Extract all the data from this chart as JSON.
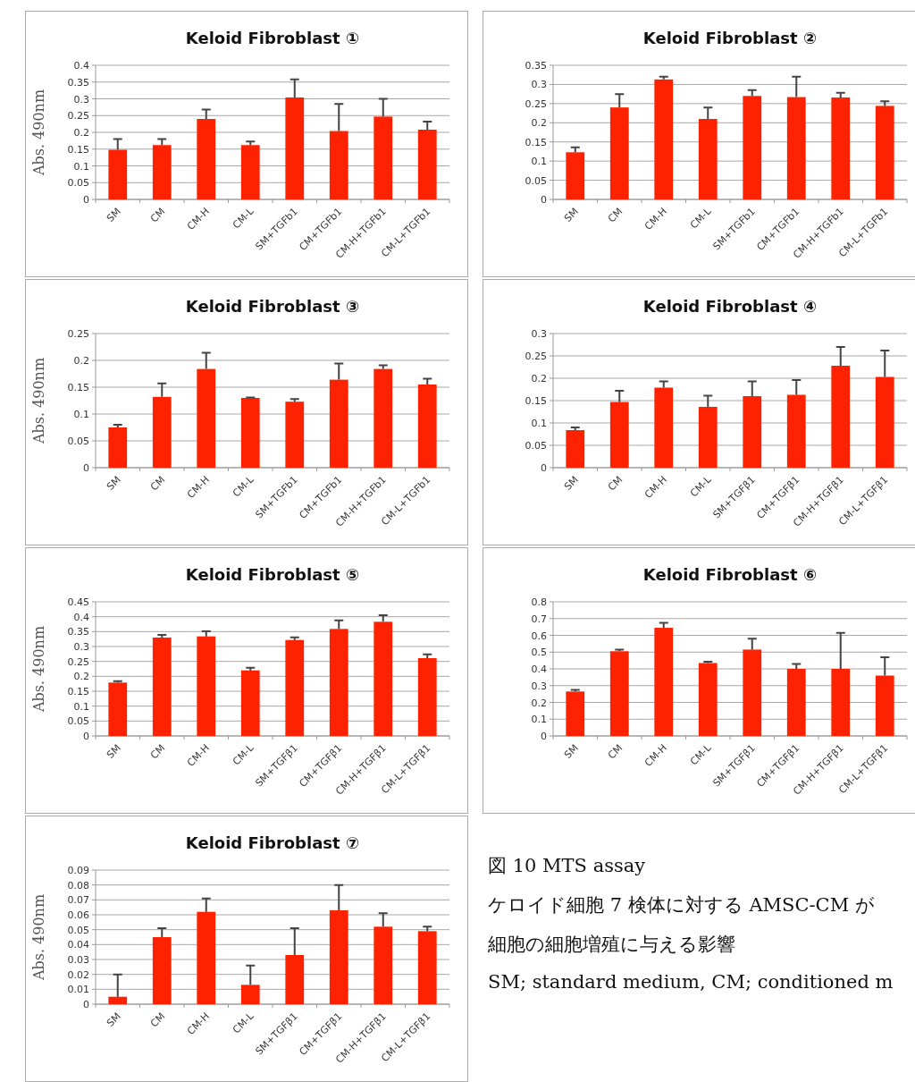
{
  "chart_data": [
    {
      "type": "bar",
      "title": "Keloid Fibroblast ①",
      "ylabel": "Abs. 490nm",
      "categories": [
        "SM",
        "CM",
        "CM-H",
        "CM-L",
        "SM+TGFb1",
        "CM+TGFb1",
        "CM-H+TGFb1",
        "CM-L+TGFb1"
      ],
      "values": [
        0.148,
        0.162,
        0.24,
        0.162,
        0.304,
        0.204,
        0.247,
        0.208
      ],
      "errors": [
        [
          0.148,
          0.18
        ],
        [
          0.162,
          0.18
        ],
        [
          0.24,
          0.268
        ],
        [
          0.162,
          0.173
        ],
        [
          0.304,
          0.358
        ],
        [
          0.204,
          0.285
        ],
        [
          0.247,
          0.3
        ],
        [
          0.208,
          0.232
        ]
      ],
      "color": "#ff2200",
      "ylim": [
        0,
        0.4
      ],
      "yticks": [
        0,
        0.05,
        0.1,
        0.15,
        0.2,
        0.25,
        0.3,
        0.35,
        0.4
      ],
      "grid": "y"
    },
    {
      "type": "bar",
      "title": "Keloid Fibroblast ②",
      "categories": [
        "SM",
        "CM",
        "CM-H",
        "CM-L",
        "SM+TGFb1",
        "CM+TGFb1",
        "CM-H+TGFb1",
        "CM-L+TGFb1"
      ],
      "values": [
        0.123,
        0.24,
        0.313,
        0.21,
        0.27,
        0.267,
        0.266,
        0.244
      ],
      "errors": [
        [
          0.123,
          0.136
        ],
        [
          0.24,
          0.275
        ],
        [
          0.313,
          0.32
        ],
        [
          0.21,
          0.24
        ],
        [
          0.27,
          0.285
        ],
        [
          0.267,
          0.32
        ],
        [
          0.266,
          0.278
        ],
        [
          0.244,
          0.256
        ]
      ],
      "color": "#ff2200",
      "ylim": [
        0,
        0.35
      ],
      "yticks": [
        0,
        0.05,
        0.1,
        0.15,
        0.2,
        0.25,
        0.3,
        0.35
      ],
      "grid": "y"
    },
    {
      "type": "bar",
      "title": "Keloid Fibroblast ③",
      "ylabel": "Abs. 490nm",
      "categories": [
        "SM",
        "CM",
        "CM-H",
        "CM-L",
        "SM+TGFb1",
        "CM+TGFb1",
        "CM-H+TGFb1",
        "CM-L+TGFb1"
      ],
      "values": [
        0.075,
        0.132,
        0.184,
        0.13,
        0.123,
        0.164,
        0.184,
        0.155
      ],
      "errors": [
        [
          0.075,
          0.08
        ],
        [
          0.132,
          0.157
        ],
        [
          0.184,
          0.214
        ],
        [
          0.13,
          0.131
        ],
        [
          0.123,
          0.128
        ],
        [
          0.164,
          0.194
        ],
        [
          0.184,
          0.191
        ],
        [
          0.155,
          0.166
        ]
      ],
      "color": "#ff2200",
      "ylim": [
        0,
        0.25
      ],
      "yticks": [
        0,
        0.05,
        0.1,
        0.15,
        0.2,
        0.25
      ],
      "grid": "y"
    },
    {
      "type": "bar",
      "title": "Keloid Fibroblast ④",
      "categories": [
        "SM",
        "CM",
        "CM-H",
        "CM-L",
        "SM+TGFβ1",
        "CM+TGFβ1",
        "CM-H+TGFβ1",
        "CM-L+TGFβ1"
      ],
      "values": [
        0.084,
        0.147,
        0.179,
        0.136,
        0.16,
        0.163,
        0.228,
        0.203
      ],
      "errors": [
        [
          0.084,
          0.09
        ],
        [
          0.147,
          0.172
        ],
        [
          0.179,
          0.193
        ],
        [
          0.136,
          0.161
        ],
        [
          0.16,
          0.193
        ],
        [
          0.163,
          0.196
        ],
        [
          0.228,
          0.27
        ],
        [
          0.203,
          0.262
        ]
      ],
      "color": "#ff2200",
      "ylim": [
        0,
        0.3
      ],
      "yticks": [
        0,
        0.05,
        0.1,
        0.15,
        0.2,
        0.25,
        0.3
      ],
      "grid": "y"
    },
    {
      "type": "bar",
      "title": "Keloid Fibroblast ⑤",
      "ylabel": "Abs. 490nm",
      "categories": [
        "SM",
        "CM",
        "CM-H",
        "CM-L",
        "SM+TGFβ1",
        "CM+TGFβ1",
        "CM-H+TGFβ1",
        "CM-L+TGFβ1"
      ],
      "values": [
        0.179,
        0.33,
        0.334,
        0.22,
        0.322,
        0.359,
        0.383,
        0.261
      ],
      "errors": [
        [
          0.179,
          0.184
        ],
        [
          0.33,
          0.339
        ],
        [
          0.334,
          0.351
        ],
        [
          0.22,
          0.229
        ],
        [
          0.322,
          0.331
        ],
        [
          0.359,
          0.388
        ],
        [
          0.383,
          0.405
        ],
        [
          0.261,
          0.274
        ]
      ],
      "color": "#ff2200",
      "ylim": [
        0,
        0.45
      ],
      "yticks": [
        0,
        0.05,
        0.1,
        0.15,
        0.2,
        0.25,
        0.3,
        0.35,
        0.4,
        0.45
      ],
      "grid": "y"
    },
    {
      "type": "bar",
      "title": "Keloid Fibroblast ⑥",
      "categories": [
        "SM",
        "CM",
        "CM-H",
        "CM-L",
        "SM+TGFβ1",
        "CM+TGFβ1",
        "CM-H+TGFβ1",
        "CM-L+TGFβ1"
      ],
      "values": [
        0.265,
        0.505,
        0.645,
        0.435,
        0.515,
        0.4,
        0.4,
        0.36
      ],
      "errors": [
        [
          0.265,
          0.275
        ],
        [
          0.505,
          0.515
        ],
        [
          0.645,
          0.675
        ],
        [
          0.435,
          0.443
        ],
        [
          0.515,
          0.58
        ],
        [
          0.4,
          0.43
        ],
        [
          0.4,
          0.615
        ],
        [
          0.36,
          0.47
        ]
      ],
      "color": "#ff2200",
      "ylim": [
        0,
        0.8
      ],
      "yticks": [
        0,
        0.1,
        0.2,
        0.3,
        0.4,
        0.5,
        0.6,
        0.7,
        0.8
      ],
      "grid": "y"
    },
    {
      "type": "bar",
      "title": "Keloid Fibroblast ⑦",
      "ylabel": "Abs. 490nm",
      "categories": [
        "SM",
        "CM",
        "CM-H",
        "CM-L",
        "SM+TGFβ1",
        "CM+TGFβ1",
        "CM-H+TGFβ1",
        "CM-L+TGFβ1"
      ],
      "values": [
        0.005,
        0.045,
        0.062,
        0.013,
        0.033,
        0.063,
        0.052,
        0.049
      ],
      "errors": [
        [
          0.005,
          0.02
        ],
        [
          0.045,
          0.051
        ],
        [
          0.062,
          0.071
        ],
        [
          0.013,
          0.026
        ],
        [
          0.033,
          0.051
        ],
        [
          0.063,
          0.08
        ],
        [
          0.052,
          0.061
        ],
        [
          0.049,
          0.052
        ]
      ],
      "color": "#ff2200",
      "ylim": [
        0,
        0.09
      ],
      "yticks": [
        0,
        0.01,
        0.02,
        0.03,
        0.04,
        0.05,
        0.06,
        0.07,
        0.08,
        0.09
      ],
      "grid": "y"
    },
    {
      "type": "other",
      "annotations": [
        "図 10 MTS assay",
        "ケロイド細胞 7 検体に対する AMSC-CM が",
        "細胞の細胞増殖に与える影響",
        "SM; standard medium, CM; conditioned m"
      ]
    }
  ]
}
